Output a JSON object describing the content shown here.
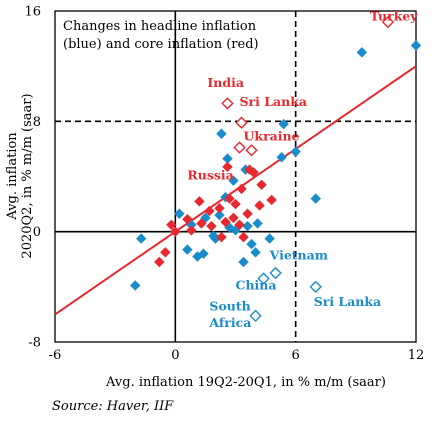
{
  "colors": {
    "headline": "#1a8ccc",
    "core": "#e8282e",
    "trend": "#e8282e",
    "axis": "#000000"
  },
  "chart_data": {
    "type": "scatter",
    "title_lines": [
      "Changes in headline inflation",
      "(blue) and core inflation (red)"
    ],
    "xlabel": "Avg. inflation  19Q2-20Q1, in % m/m (saar)",
    "ylabel_lines": [
      "Avg. inflation",
      "2020Q2, in % m/m (saar)"
    ],
    "xlim": [
      -6,
      12
    ],
    "ylim": [
      -8,
      16
    ],
    "xticks": [
      -6,
      0,
      6,
      12
    ],
    "yticks": [
      -8,
      0,
      8,
      16
    ],
    "xtick_labels": [
      "-6",
      "0",
      "6",
      "12"
    ],
    "ytick_labels": [
      "-8",
      "0",
      "8",
      "16"
    ],
    "reference_lines": {
      "vertical_dashed_x": 6,
      "horizontal_dashed_y": 8,
      "zero_lines": true
    },
    "trend_line": {
      "x": [
        -6,
        12
      ],
      "y": [
        -6.0,
        12.0
      ]
    },
    "series": [
      {
        "name": "headline",
        "color": "#1a8ccc",
        "marker": "diamond",
        "points": [
          [
            12.0,
            13.5
          ],
          [
            9.3,
            13.0
          ],
          [
            5.4,
            7.8
          ],
          [
            6.0,
            5.8
          ],
          [
            5.3,
            5.4
          ],
          [
            7.0,
            2.4
          ],
          [
            2.3,
            7.1
          ],
          [
            2.6,
            5.3
          ],
          [
            3.5,
            4.5
          ],
          [
            4.7,
            -0.5
          ],
          [
            -1.7,
            -0.5
          ],
          [
            -2.0,
            -3.9
          ],
          [
            0.2,
            1.3
          ],
          [
            1.5,
            1.0
          ],
          [
            1.4,
            -1.6
          ],
          [
            0.6,
            -1.3
          ],
          [
            1.1,
            -1.8
          ],
          [
            2.0,
            -0.5
          ],
          [
            2.7,
            0.3
          ],
          [
            3.0,
            0.1
          ],
          [
            3.8,
            -0.9
          ],
          [
            4.0,
            -1.5
          ],
          [
            3.4,
            -2.2
          ],
          [
            2.5,
            2.5
          ],
          [
            2.9,
            3.7
          ],
          [
            1.9,
            -0.3
          ],
          [
            2.2,
            1.2
          ],
          [
            4.1,
            0.6
          ],
          [
            3.6,
            0.4
          ],
          [
            0.8,
            0.5
          ]
        ],
        "hollow_points": [
          [
            5.0,
            -3.0
          ],
          [
            4.4,
            -3.4
          ],
          [
            7.0,
            -4.0
          ],
          [
            4.0,
            -6.1
          ]
        ]
      },
      {
        "name": "core",
        "color": "#e8282e",
        "marker": "diamond",
        "points": [
          [
            0.0,
            0.0
          ],
          [
            0.8,
            0.1
          ],
          [
            0.6,
            0.9
          ],
          [
            1.3,
            0.6
          ],
          [
            1.7,
            1.5
          ],
          [
            2.2,
            1.7
          ],
          [
            2.7,
            2.4
          ],
          [
            3.0,
            2.0
          ],
          [
            3.3,
            3.1
          ],
          [
            3.9,
            4.3
          ],
          [
            4.3,
            3.4
          ],
          [
            3.6,
            1.3
          ],
          [
            2.9,
            1.0
          ],
          [
            2.5,
            0.7
          ],
          [
            1.8,
            0.4
          ],
          [
            3.2,
            0.5
          ],
          [
            4.2,
            1.9
          ],
          [
            2.6,
            4.7
          ],
          [
            3.7,
            4.5
          ],
          [
            -0.8,
            -2.2
          ],
          [
            -0.5,
            -1.5
          ],
          [
            1.2,
            2.2
          ],
          [
            3.4,
            -0.4
          ],
          [
            2.3,
            -0.4
          ],
          [
            -0.2,
            0.5
          ],
          [
            4.8,
            2.3
          ]
        ],
        "hollow_points": [
          [
            10.6,
            15.2
          ],
          [
            2.6,
            9.3
          ],
          [
            3.3,
            7.9
          ],
          [
            3.2,
            6.1
          ],
          [
            3.8,
            5.9
          ]
        ]
      }
    ],
    "annotations": [
      {
        "text": "Turkey",
        "color": "#e8282e",
        "x": 9.7,
        "y": 15.3
      },
      {
        "text": "India",
        "color": "#e8282e",
        "x": 1.6,
        "y": 10.5
      },
      {
        "text": "Sri Lanka",
        "color": "#e8282e",
        "x": 3.2,
        "y": 9.1
      },
      {
        "text": "Ukraine",
        "color": "#e8282e",
        "x": 3.4,
        "y": 6.6
      },
      {
        "text": "Russia",
        "color": "#e8282e",
        "x": 0.6,
        "y": 3.8
      },
      {
        "text": "Vietnam",
        "color": "#1a8ccc",
        "x": 4.7,
        "y": -2.0
      },
      {
        "text": "China",
        "color": "#1a8ccc",
        "x": 3.0,
        "y": -4.2
      },
      {
        "text": "Sri Lanka",
        "color": "#1a8ccc",
        "x": 6.9,
        "y": -5.4
      },
      {
        "text": "South",
        "color": "#1a8ccc",
        "x": 1.7,
        "y": -5.7
      },
      {
        "text": "Africa",
        "color": "#1a8ccc",
        "x": 1.7,
        "y": -6.9
      }
    ]
  },
  "source": "Source: Haver, IIF"
}
